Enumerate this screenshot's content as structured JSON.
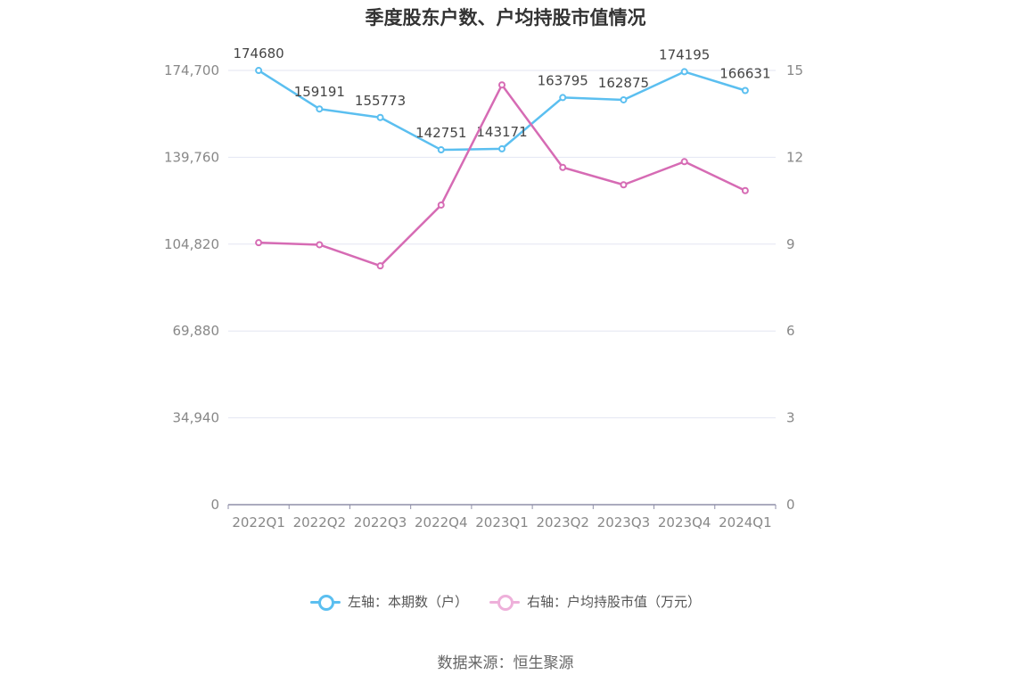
{
  "title": "季度股东户数、户均持股市值情况",
  "source": "数据来源：恒生聚源",
  "legend": {
    "left": "左轴：本期数（户）",
    "right": "右轴：户均持股市值（万元）"
  },
  "colors": {
    "left_series": "#5bbff0",
    "right_series": "#d66bb4",
    "grid": "#e3e6f2",
    "axis": "#8f8fa8"
  },
  "chart_data": {
    "type": "line",
    "categories": [
      "2022Q1",
      "2022Q2",
      "2022Q3",
      "2022Q4",
      "2023Q1",
      "2023Q2",
      "2023Q3",
      "2023Q4",
      "2024Q1"
    ],
    "left_axis": {
      "ticks": [
        "0",
        "34,940",
        "69,880",
        "104,820",
        "139,760",
        "174,700"
      ],
      "ylim": [
        0,
        174700
      ]
    },
    "right_axis": {
      "ticks": [
        "0",
        "3",
        "6",
        "9",
        "12",
        "15"
      ],
      "ylim": [
        0,
        15
      ]
    },
    "series": [
      {
        "name": "左轴：本期数（户）",
        "axis": "left",
        "values": [
          174680,
          159191,
          155773,
          142751,
          143171,
          163795,
          162875,
          174195,
          166631
        ],
        "labels": [
          "174680",
          "159191",
          "155773",
          "142751",
          "143171",
          "163795",
          "162875",
          "174195",
          "166631"
        ]
      },
      {
        "name": "右轴：户均持股市值（万元）",
        "axis": "right",
        "values": [
          9.05,
          8.98,
          8.25,
          10.35,
          14.5,
          11.65,
          11.05,
          11.85,
          10.85
        ]
      }
    ]
  }
}
